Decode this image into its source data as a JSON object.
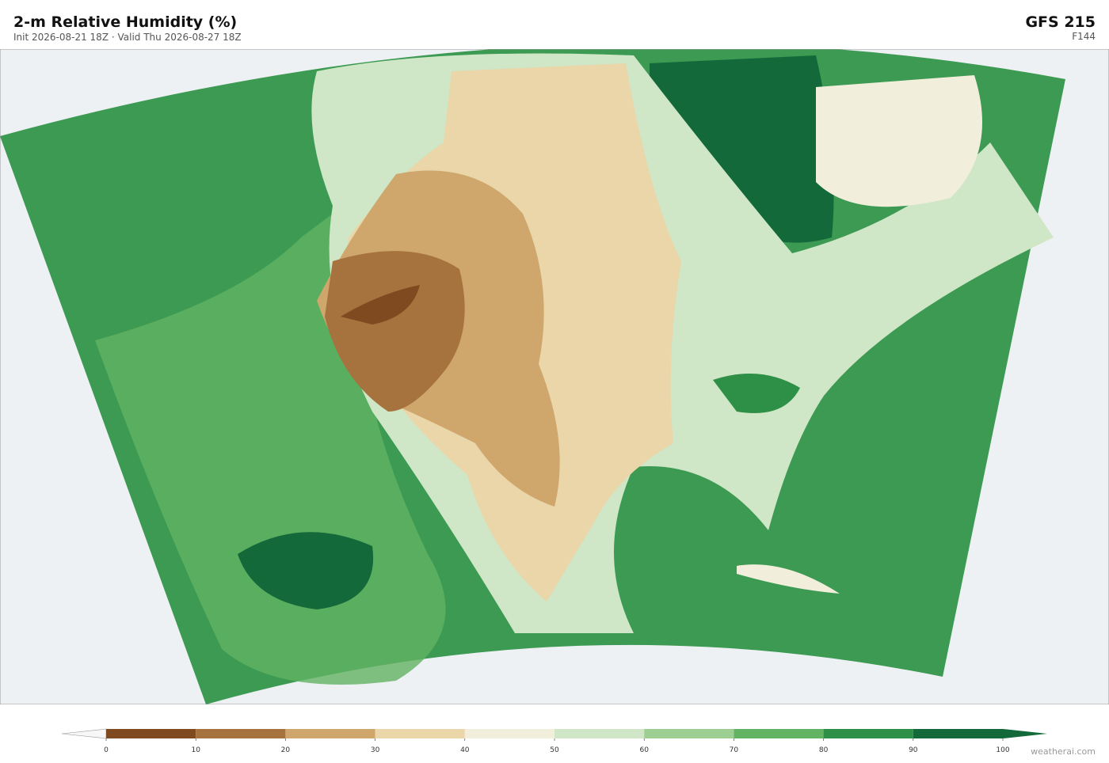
{
  "header": {
    "title": "2-m Relative Humidity  (%)",
    "subtitle": "Init 2026-08-21 18Z   ·   Valid Thu 2026-08-27 18Z",
    "model": "GFS  215",
    "forecast_hour": "F144"
  },
  "colorbar": {
    "ticks": [
      0,
      10,
      20,
      30,
      40,
      50,
      60,
      70,
      80,
      90,
      100
    ],
    "colors": [
      "#7f4a1f",
      "#a6733e",
      "#cfa66c",
      "#ead6a8",
      "#f1eedb",
      "#cfe6c7",
      "#9ccf91",
      "#62b363",
      "#2e8f47",
      "#13693a"
    ],
    "under_color": "#f7f7f7",
    "over_color": "#13693a"
  },
  "footer": {
    "credit": "weatherai.com"
  }
}
